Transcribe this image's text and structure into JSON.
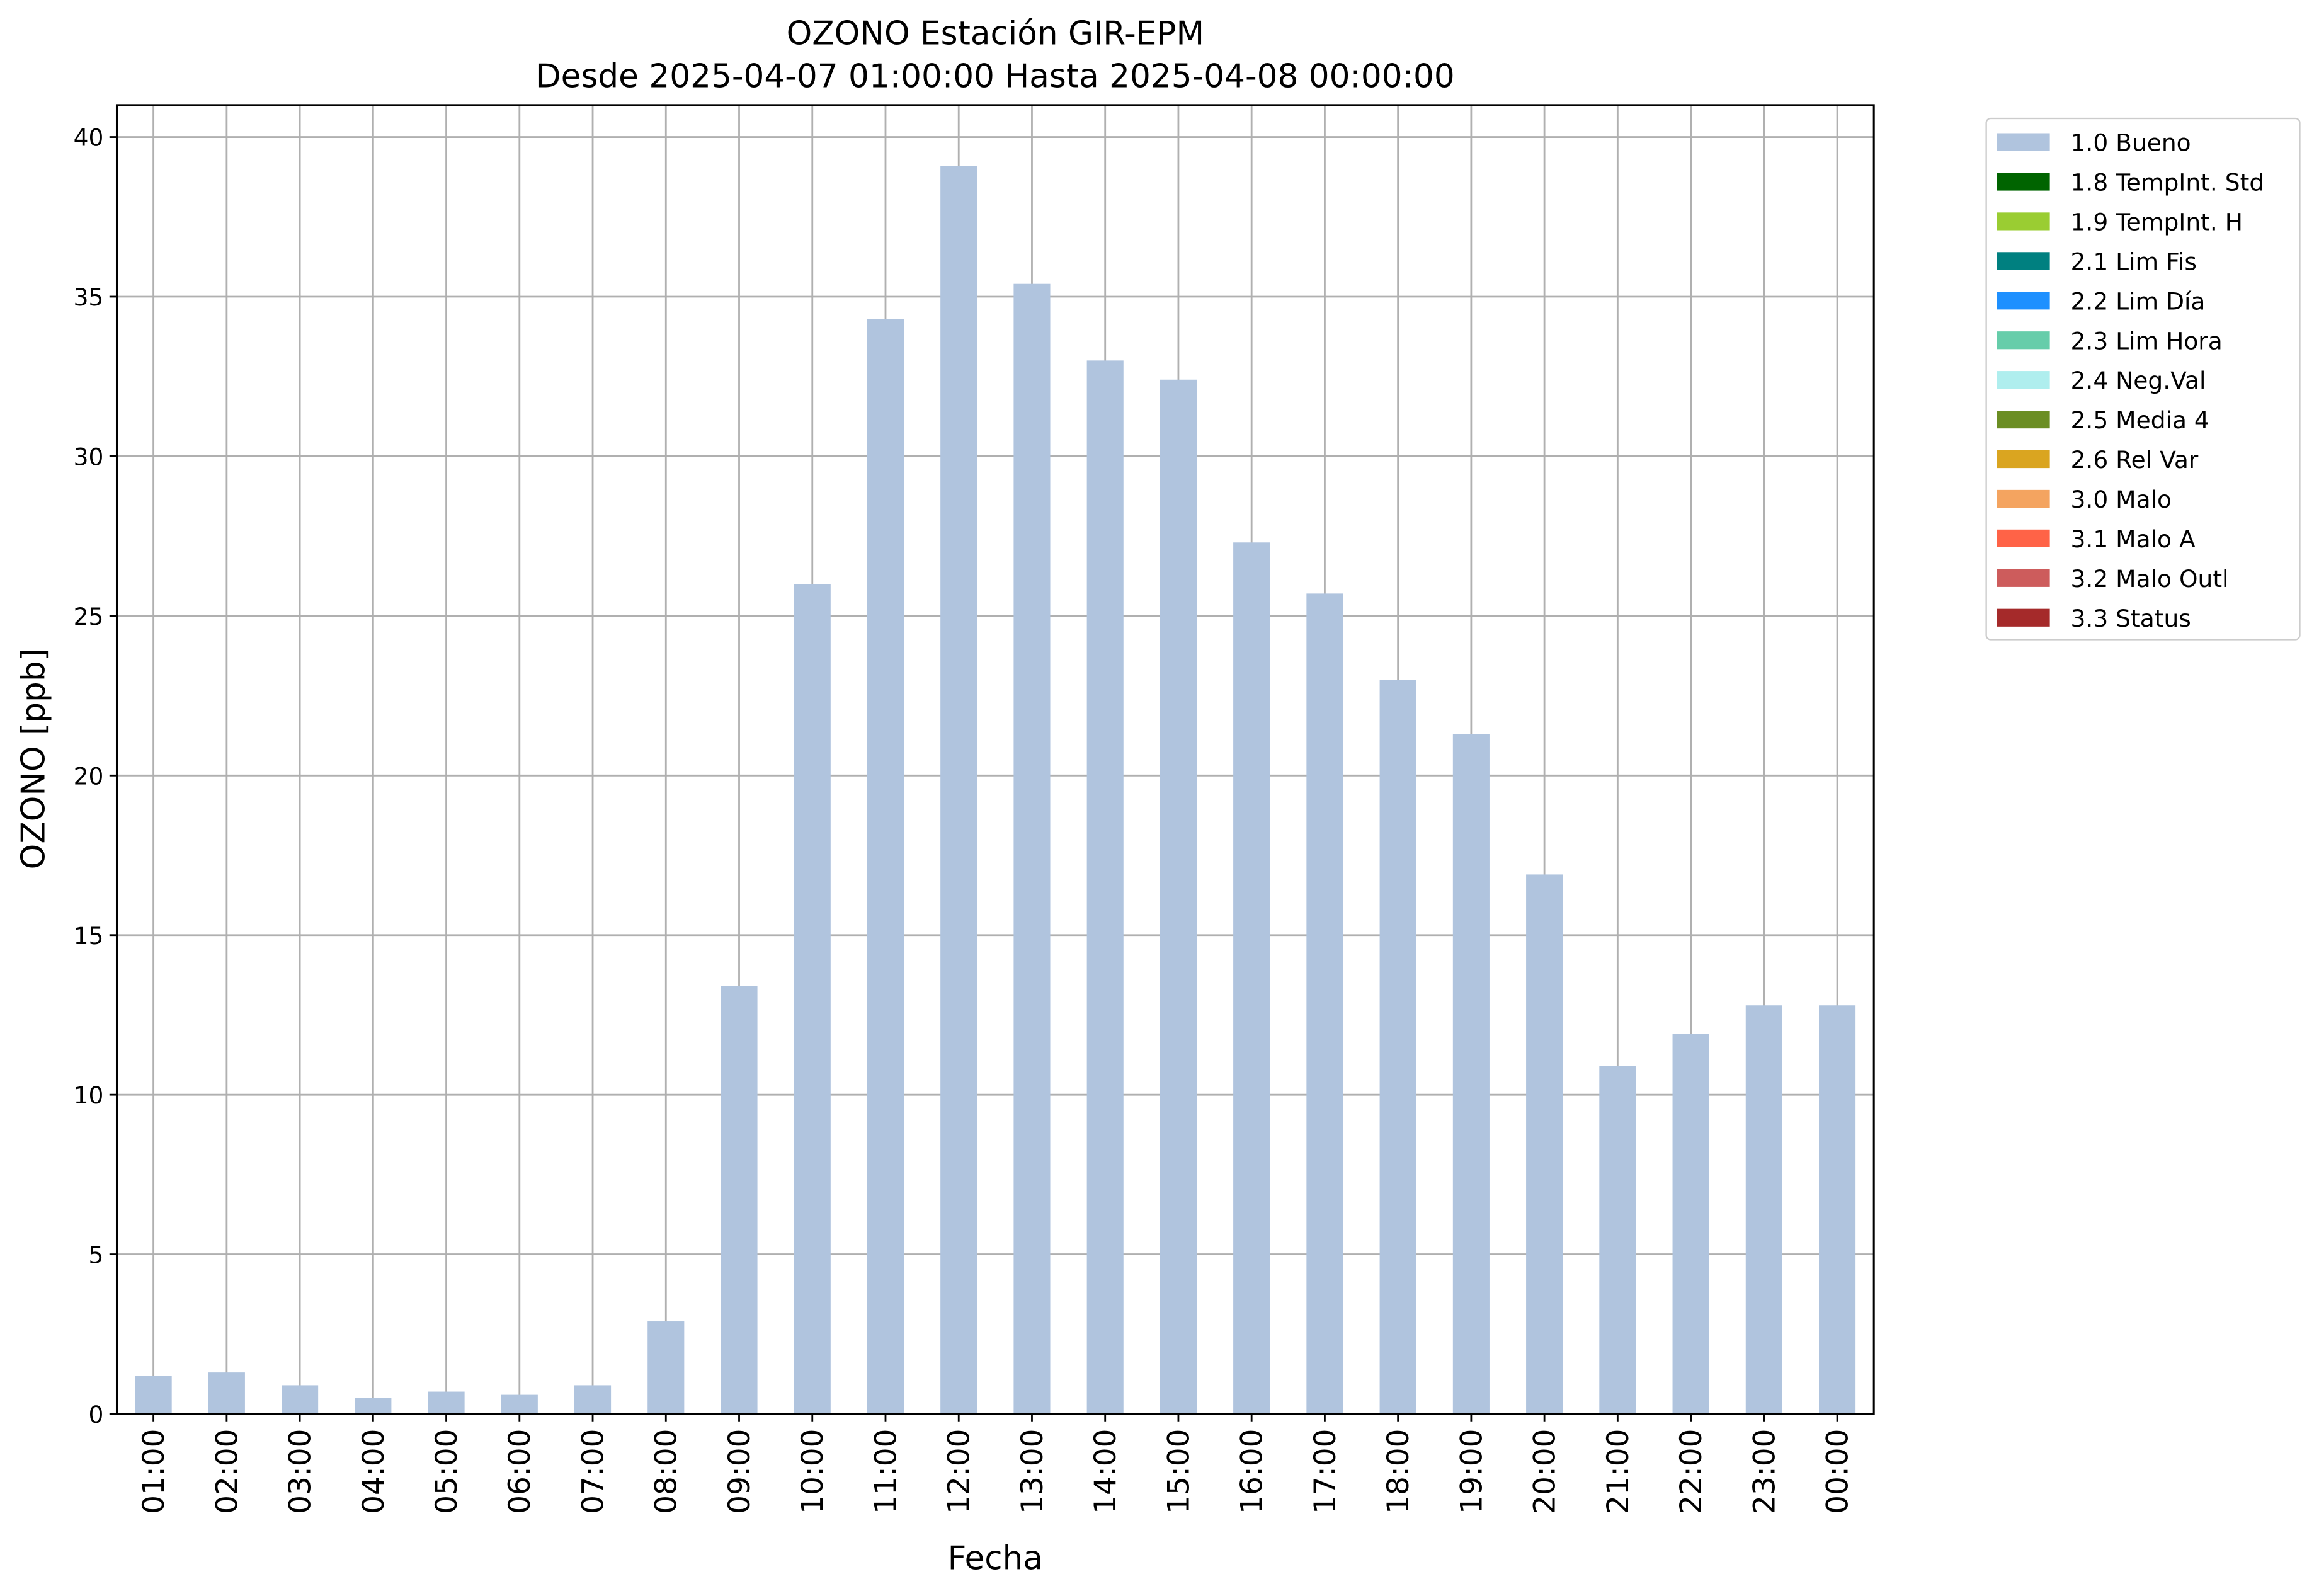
{
  "chart_data": {
    "type": "bar",
    "stacked": true,
    "title": "OZONO Estación GIR-EPM",
    "subtitle": "Desde 2025-04-07 01:00:00 Hasta 2025-04-08 00:00:00",
    "x_label": "Fecha",
    "y_label": "OZONO [ppb]",
    "categories": [
      "01:00",
      "02:00",
      "03:00",
      "04:00",
      "05:00",
      "06:00",
      "07:00",
      "08:00",
      "09:00",
      "10:00",
      "11:00",
      "12:00",
      "13:00",
      "14:00",
      "15:00",
      "16:00",
      "17:00",
      "18:00",
      "19:00",
      "20:00",
      "21:00",
      "22:00",
      "23:00",
      "00:00"
    ],
    "series": [
      {
        "name": "1.0 Bueno",
        "color": "#b0c4de",
        "values": [
          1.2,
          1.3,
          0.9,
          0.5,
          0.7,
          0.6,
          0.9,
          2.9,
          13.4,
          26.0,
          34.3,
          39.1,
          35.4,
          33.0,
          32.4,
          27.3,
          25.7,
          23.0,
          21.3,
          16.9,
          10.9,
          11.9,
          12.8,
          12.8
        ]
      },
      {
        "name": "1.8 TempInt. Std",
        "color": "#006400",
        "values": [
          null,
          null,
          null,
          null,
          null,
          null,
          null,
          null,
          null,
          null,
          null,
          null,
          null,
          null,
          null,
          null,
          null,
          null,
          null,
          null,
          null,
          null,
          null,
          null
        ]
      },
      {
        "name": "1.9 TempInt. H",
        "color": "#9acd32",
        "values": [
          null,
          null,
          null,
          null,
          null,
          null,
          null,
          null,
          null,
          null,
          null,
          null,
          null,
          null,
          null,
          null,
          null,
          null,
          null,
          null,
          null,
          null,
          null,
          null
        ]
      },
      {
        "name": "2.1 Lim Fis",
        "color": "#008080",
        "values": [
          null,
          null,
          null,
          null,
          null,
          null,
          null,
          null,
          null,
          null,
          null,
          null,
          null,
          null,
          null,
          null,
          null,
          null,
          null,
          null,
          null,
          null,
          null,
          null
        ]
      },
      {
        "name": "2.2 Lim Día",
        "color": "#1e90ff",
        "values": [
          null,
          null,
          null,
          null,
          null,
          null,
          null,
          null,
          null,
          null,
          null,
          null,
          null,
          null,
          null,
          null,
          null,
          null,
          null,
          null,
          null,
          null,
          null,
          null
        ]
      },
      {
        "name": "2.3 Lim Hora",
        "color": "#66cdaa",
        "values": [
          null,
          null,
          null,
          null,
          null,
          null,
          null,
          null,
          null,
          null,
          null,
          null,
          null,
          null,
          null,
          null,
          null,
          null,
          null,
          null,
          null,
          null,
          null,
          null
        ]
      },
      {
        "name": "2.4 Neg.Val",
        "color": "#afeeee",
        "values": [
          null,
          null,
          null,
          null,
          null,
          null,
          null,
          null,
          null,
          null,
          null,
          null,
          null,
          null,
          null,
          null,
          null,
          null,
          null,
          null,
          null,
          null,
          null,
          null
        ]
      },
      {
        "name": "2.5 Media 4",
        "color": "#6b8e23",
        "values": [
          null,
          null,
          null,
          null,
          null,
          null,
          null,
          null,
          null,
          null,
          null,
          null,
          null,
          null,
          null,
          null,
          null,
          null,
          null,
          null,
          null,
          null,
          null,
          null
        ]
      },
      {
        "name": "2.6 Rel Var",
        "color": "#daa520",
        "values": [
          null,
          null,
          null,
          null,
          null,
          null,
          null,
          null,
          null,
          null,
          null,
          null,
          null,
          null,
          null,
          null,
          null,
          null,
          null,
          null,
          null,
          null,
          null,
          null
        ]
      },
      {
        "name": "3.0 Malo",
        "color": "#f4a460",
        "values": [
          null,
          null,
          null,
          null,
          null,
          null,
          null,
          null,
          null,
          null,
          null,
          null,
          null,
          null,
          null,
          null,
          null,
          null,
          null,
          null,
          null,
          null,
          null,
          null
        ]
      },
      {
        "name": "3.1 Malo A",
        "color": "#ff6347",
        "values": [
          null,
          null,
          null,
          null,
          null,
          null,
          null,
          null,
          null,
          null,
          null,
          null,
          null,
          null,
          null,
          null,
          null,
          null,
          null,
          null,
          null,
          null,
          null,
          null
        ]
      },
      {
        "name": "3.2 Malo Outl",
        "color": "#cd5c5c",
        "values": [
          null,
          null,
          null,
          null,
          null,
          null,
          null,
          null,
          null,
          null,
          null,
          null,
          null,
          null,
          null,
          null,
          null,
          null,
          null,
          null,
          null,
          null,
          null,
          null
        ]
      },
      {
        "name": "3.3 Status",
        "color": "#a52a2a",
        "values": [
          null,
          null,
          null,
          null,
          null,
          null,
          null,
          null,
          null,
          null,
          null,
          null,
          null,
          null,
          null,
          null,
          null,
          null,
          null,
          null,
          null,
          null,
          null,
          null
        ]
      }
    ],
    "ylim": [
      0,
      41
    ],
    "yticks": [
      0,
      5,
      10,
      15,
      20,
      25,
      30,
      35,
      40
    ],
    "grid": true,
    "legend": "outside right"
  }
}
